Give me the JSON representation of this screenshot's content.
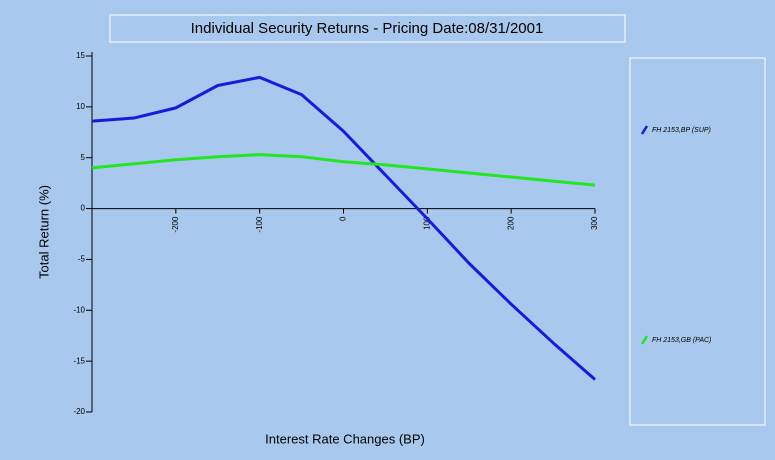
{
  "chart_data": {
    "type": "line",
    "title": "Individual Security Returns - Pricing Date:08/31/2001",
    "x_label": "Interest Rate Changes (BP)",
    "y_label": "Total Return (%)",
    "x": [
      -300,
      -250,
      -200,
      -150,
      -100,
      -50,
      0,
      50,
      100,
      150,
      200,
      250,
      300
    ],
    "series": [
      {
        "name": "FH 2153,BP (SUP)",
        "color": "#1a1adc",
        "values": [
          8.6,
          8.9,
          9.9,
          12.1,
          12.9,
          11.2,
          7.6,
          3.3,
          -1.0,
          -5.4,
          -9.4,
          -13.2,
          -16.8
        ]
      },
      {
        "name": "FH 2153,GB (PAC)",
        "color": "#22e622",
        "values": [
          4.0,
          4.4,
          4.8,
          5.1,
          5.3,
          5.1,
          4.6,
          4.3,
          3.9,
          3.5,
          3.1,
          2.7,
          2.3
        ]
      }
    ],
    "xlim": [
      -300,
      300
    ],
    "xticks": [
      -200,
      -100,
      0,
      100,
      200,
      300
    ],
    "ylim": [
      -20,
      15
    ],
    "yticks": [
      -20,
      -15,
      -10,
      -5,
      0,
      5,
      10,
      15
    ],
    "grid": false,
    "legend": "right"
  }
}
